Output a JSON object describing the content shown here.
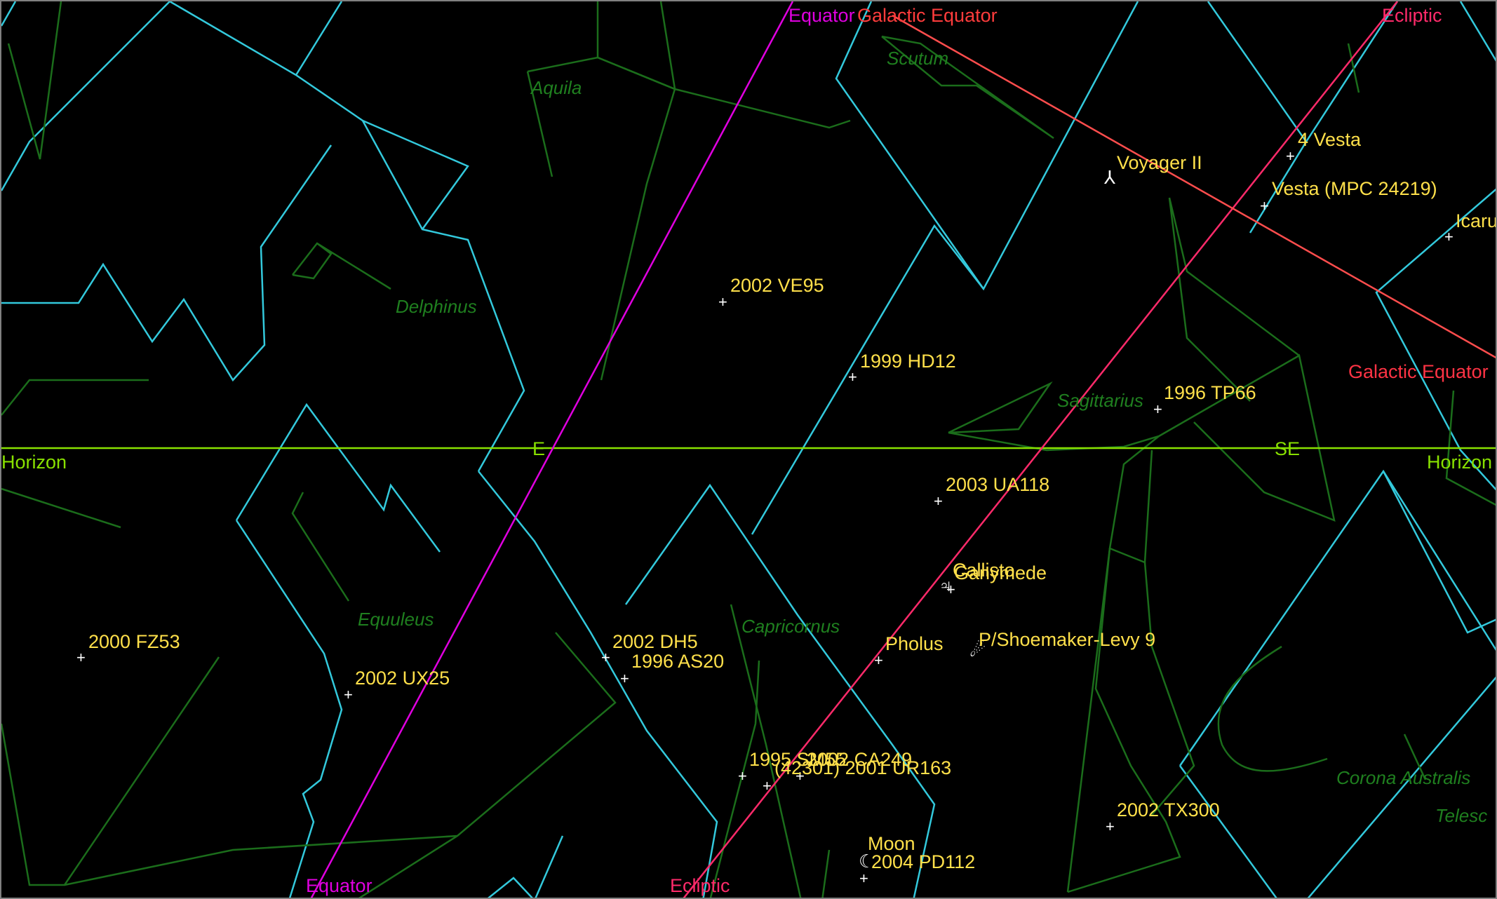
{
  "colors": {
    "background": "#000000",
    "boundary": "#33c9dc",
    "constellation": "#1b6d1b",
    "horizon": "#88e000",
    "equator": "#e000e0",
    "ecliptic": "#ff2a6a",
    "galactic": "#ff4d4d",
    "object_label": "#ffe04a",
    "marker": "#ffffff"
  },
  "reference": {
    "equator_top": "Equator",
    "equator_bottom": "Equator",
    "galactic_top": "Galactic Equator",
    "galactic_right": "Galactic Equator",
    "ecliptic_top": "Ecliptic",
    "ecliptic_bottom": "Ecliptic",
    "horizon_left": "Horizon",
    "horizon_right": "Horizon",
    "dir_e": "E",
    "dir_se": "SE"
  },
  "constellations": {
    "aquila": "Aquila",
    "scutum": "Scutum",
    "delphinus": "Delphinus",
    "sagittarius": "Sagittarius",
    "equuleus": "Equuleus",
    "capricornus": "Capricornus",
    "corona_australis": "Corona Australis",
    "telescopium": "Telesc"
  },
  "objects": {
    "vesta": "4 Vesta",
    "voyager": "Voyager II",
    "vesta_mpc": "Vesta (MPC 24219)",
    "icarus": "Icaru",
    "ve95": "2002 VE95",
    "hd12": "1999 HD12",
    "tp66": "1996 TP66",
    "ua118": "2003 UA118",
    "ganymede": "Ganymede",
    "callisto": "Callisto",
    "fz53": "2000 FZ53",
    "ux25": "2002 UX25",
    "dh5": "2002 DH5",
    "as20": "1996 AS20",
    "pholus": "Pholus",
    "shoemaker": "P/Shoemaker-Levy 9",
    "sm55": "1995 SM55",
    "ca249": "2002 CA249",
    "ur163": "(42301) 2001 UR163",
    "tx300": "2002 TX300",
    "moon": "Moon",
    "pd112": "2004 PD112"
  },
  "symbols": {
    "plus": "+",
    "jupiter": "♃",
    "moon": "☾",
    "voyager": "⅄",
    "comet": "☄"
  }
}
